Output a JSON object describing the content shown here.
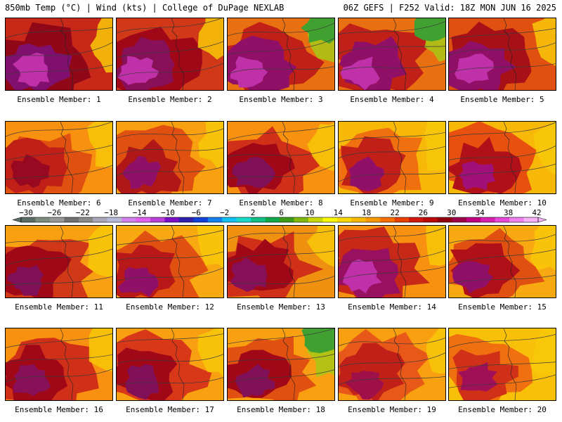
{
  "header": {
    "left": "850mb Temp (°C) | Wind (kts) | College of DuPage NEXLAB",
    "right": "06Z GEFS | F252 Valid: 18Z MON JUN 16 2025"
  },
  "colorbar": {
    "labels": [
      "−30",
      "−26",
      "−22",
      "−18",
      "−14",
      "−10",
      "−6",
      "−2",
      "2",
      "6",
      "10",
      "14",
      "18",
      "22",
      "26",
      "30",
      "34",
      "38",
      "42"
    ],
    "colors": [
      "#5c6e64",
      "#7c8c80",
      "#989898",
      "#707070",
      "#8a8a8a",
      "#a8a8b8",
      "#b8b8d8",
      "#d080e8",
      "#e060f0",
      "#b840d8",
      "#7c10c8",
      "#3020b0",
      "#1040d8",
      "#1480f0",
      "#10c0f0",
      "#18d8c8",
      "#10c088",
      "#10a848",
      "#3c9c18",
      "#80b810",
      "#c8d808",
      "#f8f800",
      "#f8d800",
      "#f8b800",
      "#f89800",
      "#f87000",
      "#e84000",
      "#d01810",
      "#b80808",
      "#900010",
      "#a00048",
      "#c00080",
      "#d820b0",
      "#e848d8",
      "#f080f0",
      "#f8b0f8"
    ]
  },
  "members": [
    {
      "label": "Ensemble Member: 1",
      "palette": [
        "#c82818",
        "#900818",
        "#801070",
        "#c030a8"
      ],
      "green": false
    },
    {
      "label": "Ensemble Member: 2",
      "palette": [
        "#d03818",
        "#a00818",
        "#881058",
        "#c030a8"
      ],
      "green": false
    },
    {
      "label": "Ensemble Member: 3",
      "palette": [
        "#e87010",
        "#c02018",
        "#901068",
        "#c030a8"
      ],
      "green": true
    },
    {
      "label": "Ensemble Member: 4",
      "palette": [
        "#e87010",
        "#c02018",
        "#901068",
        "#c030a8"
      ],
      "green": true
    },
    {
      "label": "Ensemble Member: 5",
      "palette": [
        "#e05010",
        "#a81018",
        "#901068",
        "#c030a8"
      ],
      "green": false
    },
    {
      "label": "Ensemble Member: 6",
      "palette": [
        "#f89010",
        "#e05010",
        "#c02018",
        "#980820"
      ],
      "green": false
    },
    {
      "label": "Ensemble Member: 7",
      "palette": [
        "#f8a010",
        "#e05010",
        "#b01818",
        "#901068"
      ],
      "green": false
    },
    {
      "label": "Ensemble Member: 8",
      "palette": [
        "#f89010",
        "#d03018",
        "#a00818",
        "#801058"
      ],
      "green": false
    },
    {
      "label": "Ensemble Member: 9",
      "palette": [
        "#f8b808",
        "#f07010",
        "#c02018",
        "#901068"
      ],
      "green": false
    },
    {
      "label": "Ensemble Member: 10",
      "palette": [
        "#f8b808",
        "#e85010",
        "#b01018",
        "#a01078"
      ],
      "green": false
    },
    {
      "label": "Ensemble Member: 11",
      "palette": [
        "#f8a010",
        "#d03818",
        "#a00818",
        "#801058"
      ],
      "green": false
    },
    {
      "label": "Ensemble Member: 12",
      "palette": [
        "#f8a810",
        "#e05010",
        "#b81818",
        "#901068"
      ],
      "green": false
    },
    {
      "label": "Ensemble Member: 13",
      "palette": [
        "#f09010",
        "#d03018",
        "#a00818",
        "#881058"
      ],
      "green": false
    },
    {
      "label": "Ensemble Member: 14",
      "palette": [
        "#f89010",
        "#c82818",
        "#981060",
        "#c030a8"
      ],
      "green": false
    },
    {
      "label": "Ensemble Member: 15",
      "palette": [
        "#f8a810",
        "#e05010",
        "#b01018",
        "#901068"
      ],
      "green": false
    },
    {
      "label": "Ensemble Member: 16",
      "palette": [
        "#f89010",
        "#d03018",
        "#a00818",
        "#881058"
      ],
      "green": false
    },
    {
      "label": "Ensemble Member: 17",
      "palette": [
        "#f8a010",
        "#d83818",
        "#a00818",
        "#801058"
      ],
      "green": false
    },
    {
      "label": "Ensemble Member: 18",
      "palette": [
        "#f8a010",
        "#e05010",
        "#a00818",
        "#801058"
      ],
      "green": true
    },
    {
      "label": "Ensemble Member: 19",
      "palette": [
        "#f8a010",
        "#e85818",
        "#c02018",
        "#a01048"
      ],
      "green": false
    },
    {
      "label": "Ensemble Member: 20",
      "palette": [
        "#f8c008",
        "#f07010",
        "#d03018",
        "#a01058"
      ],
      "green": false
    }
  ]
}
